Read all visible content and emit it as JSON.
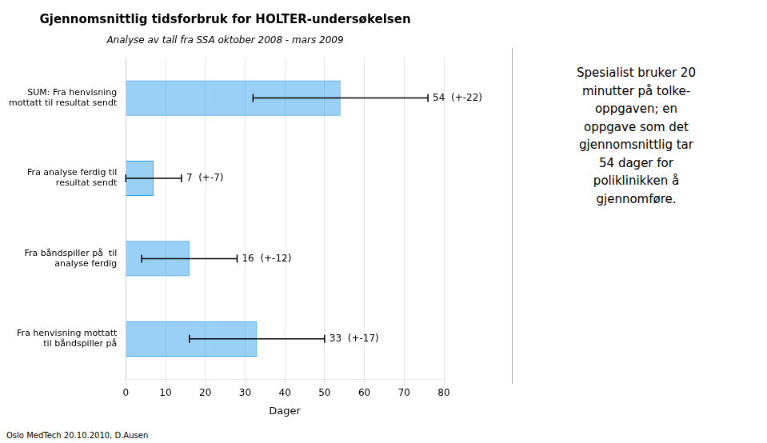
{
  "chart_data": {
    "type": "bar",
    "orientation": "horizontal",
    "title": "Gjennomsnittlig tidsforbruk for HOLTER-undersøkelsen",
    "subtitle": "Analyse av tall fra SSA oktober 2008 - mars 2009",
    "xlabel": "Dager",
    "footer": "Oslo MedTech 20.10.2010, D.Ausen",
    "annotation": "Spesialist bruker 20\nminutter på tolke-\noppgaven; en\noppgave som det\ngjennomsnittlig tar\n54 dager for\npoliklinikken å\ngjennomføre.",
    "categories": [
      "SUM: Fra henvisning\nmottatt til resultat sendt",
      "Fra analyse ferdig til\nresultat sendt",
      "Fra båndspiller på  til\nanalyse ferdig",
      "Fra henvisning mottatt\ntil båndspiller på"
    ],
    "values": [
      54,
      7,
      16,
      33
    ],
    "errors": [
      22,
      7,
      12,
      17
    ],
    "value_labels": [
      "54  (+-22)",
      "7  (+-7)",
      "16  (+-12)",
      "33  (+-17)"
    ],
    "data_labels": true,
    "xlim": [
      0,
      80
    ],
    "xticks": [
      0,
      10,
      20,
      30,
      40,
      50,
      60,
      70,
      80
    ],
    "grid": true
  }
}
